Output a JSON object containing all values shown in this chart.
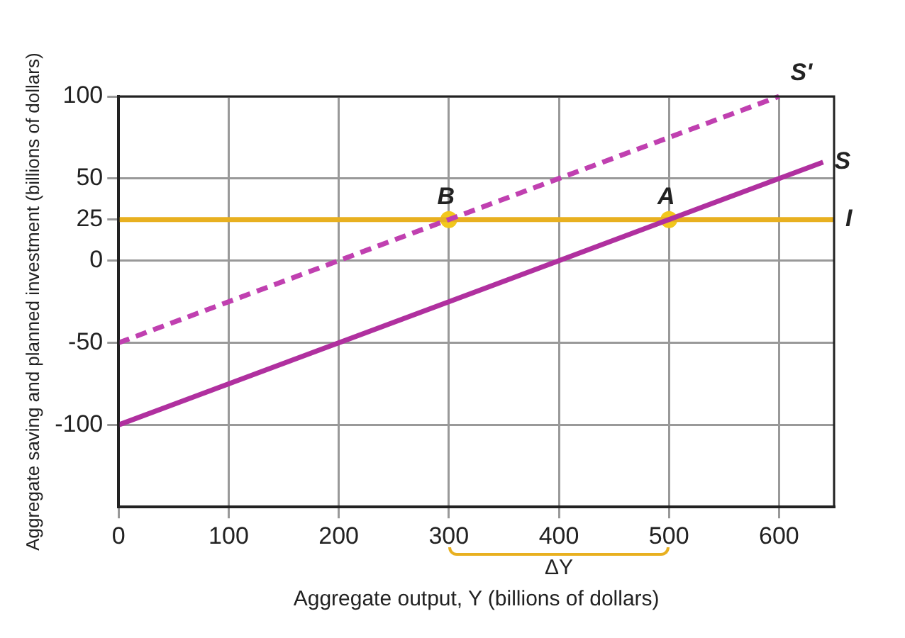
{
  "chart_data": {
    "type": "line",
    "xlabel": "Aggregate output, Y (billions of dollars)",
    "ylabel": "Aggregate saving and planned investment (billions of dollars)",
    "xlim": [
      0,
      650
    ],
    "xticks": [
      0,
      100,
      200,
      300,
      400,
      500,
      600
    ],
    "ylim": [
      -150,
      100
    ],
    "yticks": [
      -100,
      -50,
      0,
      25,
      50,
      100
    ],
    "grid": true,
    "legend": false,
    "marker": "none",
    "series": [
      {
        "name": "S'",
        "color": "#c040b0",
        "x": [
          0,
          600
        ],
        "values": [
          -50,
          100
        ],
        "line_style": "dashed"
      },
      {
        "name": "S",
        "color": "#b0309f",
        "x": [
          0,
          640
        ],
        "values": [
          -100,
          60
        ],
        "line_style": "solid"
      },
      {
        "name": "I",
        "color": "#e8b020",
        "x": [
          0,
          650
        ],
        "values": [
          25,
          25
        ],
        "line_style": "solid"
      },
      {
        "type": "scatter",
        "color": "#f2c81c",
        "x": [
          300,
          500
        ],
        "values": [
          25,
          25
        ],
        "marker": "circle"
      }
    ],
    "annotations": [
      {
        "text": "B",
        "x": 300,
        "y": 25
      },
      {
        "text": "A",
        "x": 500,
        "y": 25
      },
      "ΔY"
    ]
  }
}
